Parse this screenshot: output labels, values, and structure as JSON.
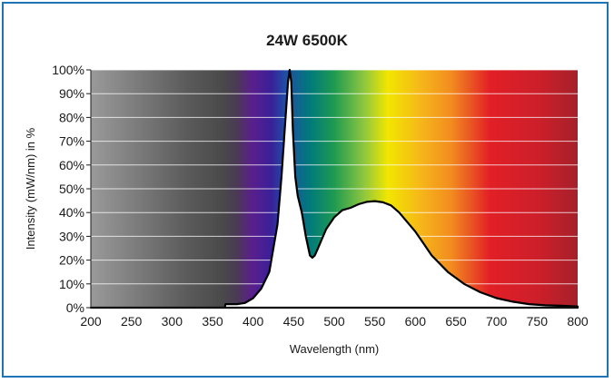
{
  "chart_data": {
    "type": "area",
    "title": "24W 6500K",
    "xlabel": "Wavelength (nm)",
    "ylabel": "Intensity (mW/nm) in %",
    "xlim": [
      200,
      800
    ],
    "ylim": [
      0,
      100
    ],
    "x_ticks": [
      "200",
      "250",
      "300",
      "350",
      "400",
      "450",
      "500",
      "550",
      "600",
      "650",
      "700",
      "750",
      "800"
    ],
    "y_ticks": [
      "0%",
      "10%",
      "20%",
      "30%",
      "40%",
      "50%",
      "60%",
      "70%",
      "80%",
      "90%",
      "100%"
    ],
    "grid": true,
    "legend": "none",
    "background": "visible spectrum color band (gray below 380 nm, violet, blue, green, yellow, orange, red)",
    "series": [
      {
        "x": [
          200,
          365,
          366,
          380,
          390,
          400,
          405,
          410,
          420,
          430,
          435,
          440,
          443,
          445,
          447,
          449,
          452,
          455,
          460,
          465,
          470,
          473,
          476,
          480,
          485,
          490,
          500,
          510,
          520,
          530,
          540,
          550,
          560,
          570,
          580,
          590,
          600,
          610,
          620,
          640,
          660,
          680,
          700,
          720,
          740,
          760,
          780,
          800
        ],
        "y": [
          0,
          0,
          1.5,
          1.5,
          2,
          4,
          6,
          8,
          15,
          35,
          55,
          80,
          95,
          100,
          95,
          75,
          55,
          47,
          40,
          30,
          22,
          21,
          22,
          25,
          29,
          33,
          38,
          41,
          42,
          43.5,
          44.5,
          44.8,
          44.3,
          43,
          40,
          36,
          32,
          27,
          22,
          15,
          10,
          6.5,
          4,
          2.5,
          1.5,
          1,
          0.8,
          0.5
        ]
      }
    ],
    "colors": {
      "frame": "#1f74b8",
      "curve": "#000000",
      "gray_dark": "#4a4a4a",
      "violet": "#5a1f8c",
      "blue": "#1f4fa6",
      "teal": "#007a7a",
      "green": "#2fa64a",
      "yellow": "#f2e600",
      "orange": "#f28c1f",
      "red": "#e21f26",
      "dark_red": "#b5202a"
    }
  }
}
